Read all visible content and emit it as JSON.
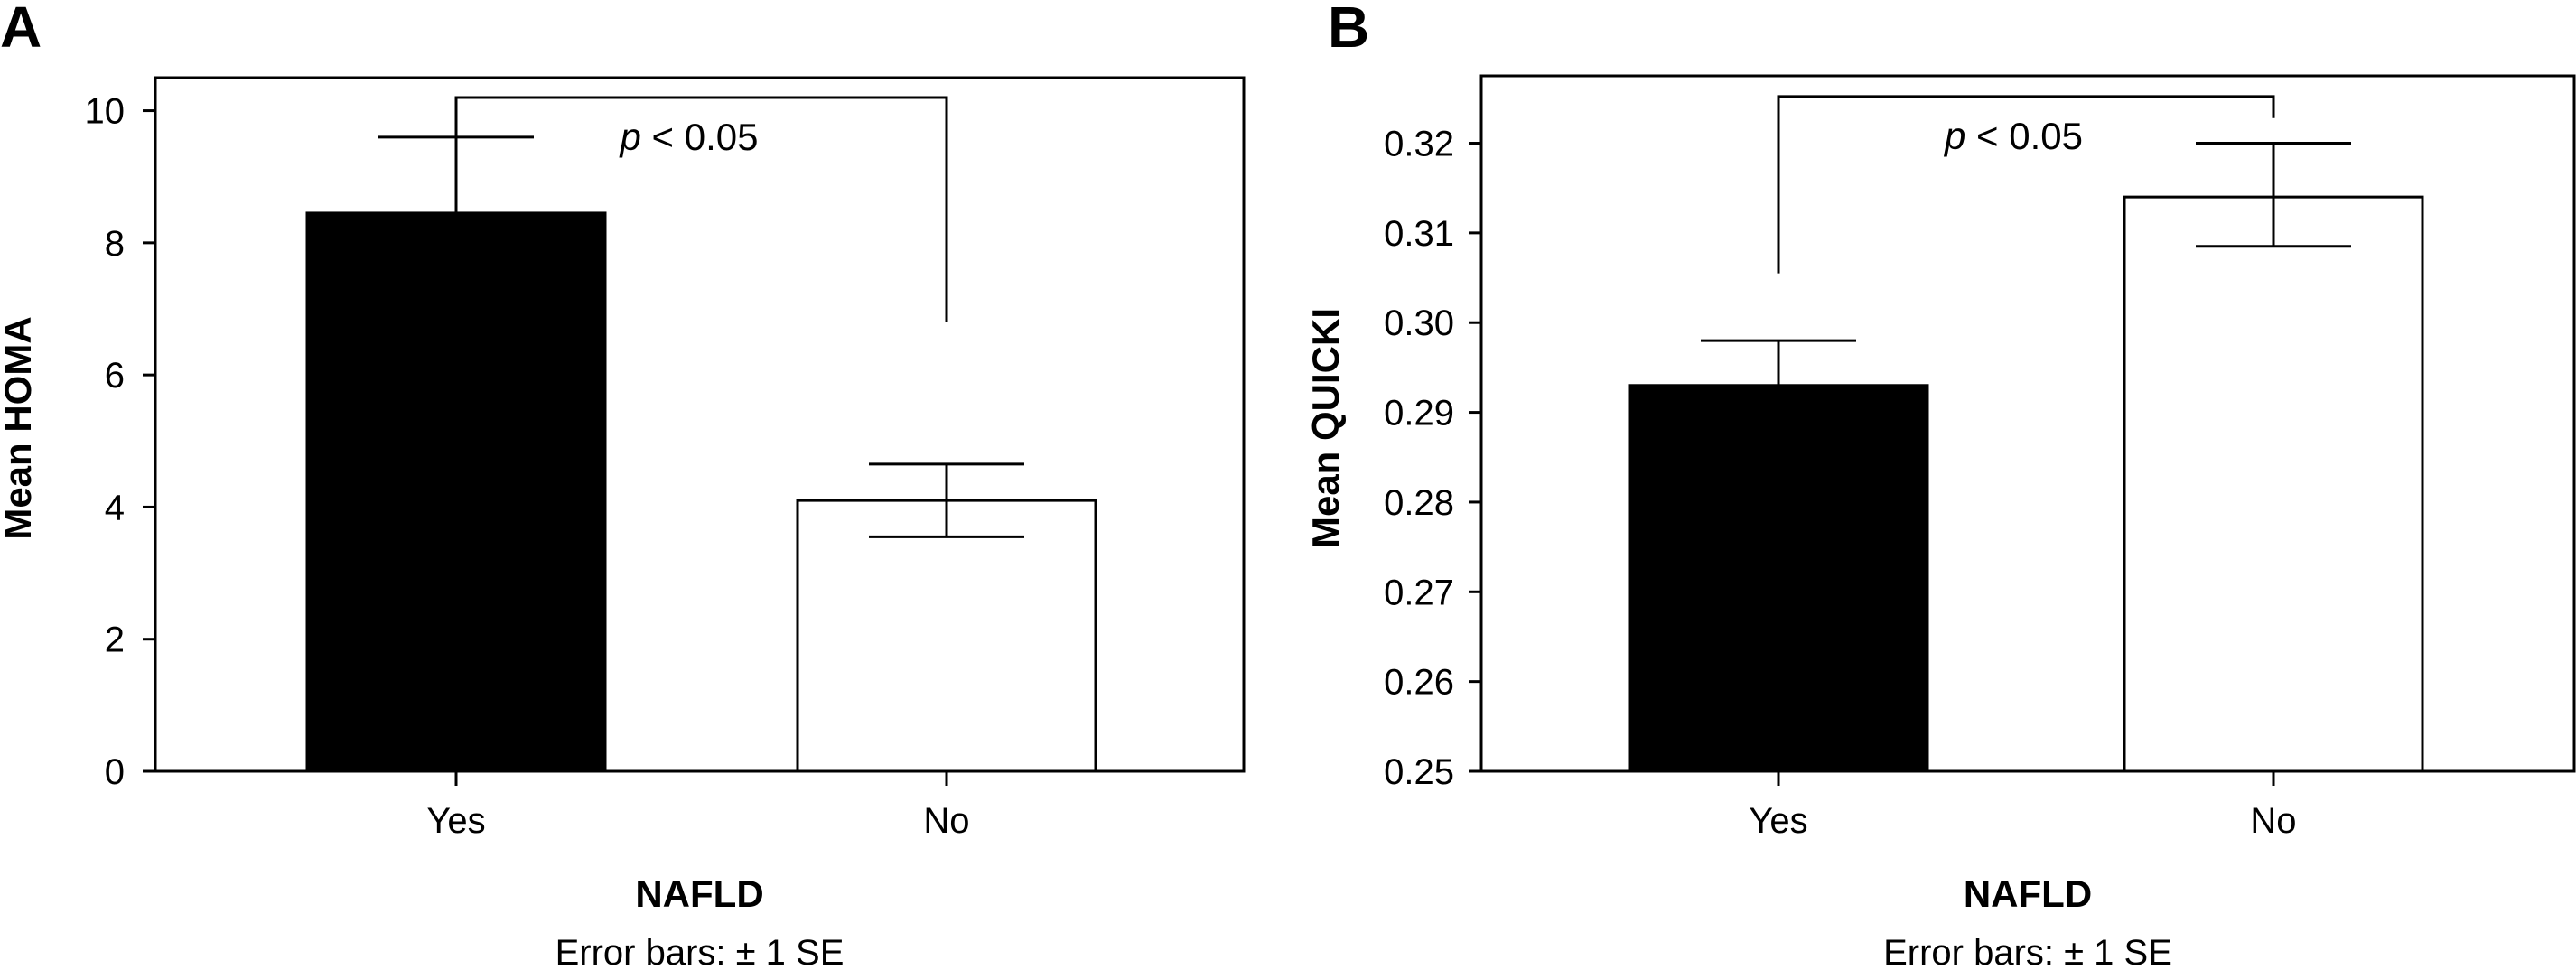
{
  "chart_data": [
    {
      "type": "bar",
      "panel_label": "A",
      "categories": [
        "Yes",
        "No"
      ],
      "values": [
        8.45,
        4.1
      ],
      "error_bars": {
        "upper": [
          9.6,
          4.65
        ],
        "lower": [
          7.3,
          3.55
        ]
      },
      "bar_colors": [
        "#000000",
        "#ffffff"
      ],
      "ylim": [
        0,
        10.5
      ],
      "yticks": [
        0,
        2,
        4,
        6,
        8,
        10
      ],
      "ytick_labels": [
        "0",
        "2",
        "4",
        "6",
        "8",
        "10"
      ],
      "ylabel": "Mean HOMA",
      "xlabel": "NAFLD",
      "note": "Error bars: ± 1 SE",
      "significance": {
        "p_symbol": "p",
        "p_rest": " < 0.05",
        "left_end": 9.6,
        "right_end": 6.8,
        "top": 10.2
      },
      "grid": false
    },
    {
      "type": "bar",
      "panel_label": "B",
      "categories": [
        "Yes",
        "No"
      ],
      "values": [
        0.293,
        0.314
      ],
      "error_bars": {
        "upper": [
          0.298,
          0.32
        ],
        "lower": [
          0.288,
          0.3085
        ]
      },
      "bar_colors": [
        "#000000",
        "#ffffff"
      ],
      "ylim": [
        0.25,
        0.3275
      ],
      "yticks": [
        0.25,
        0.26,
        0.27,
        0.28,
        0.29,
        0.3,
        0.31,
        0.32
      ],
      "ytick_labels": [
        "0.25",
        "0.26",
        "0.27",
        "0.28",
        "0.29",
        "0.30",
        "0.31",
        "0.32"
      ],
      "ylabel": "Mean QUICKI",
      "xlabel": "NAFLD",
      "note": "Error bars: ± 1 SE",
      "significance": {
        "p_symbol": "p",
        "p_rest": " < 0.05",
        "left_end": 0.3055,
        "right_end": 0.3228,
        "top": 0.3252
      },
      "grid": false
    }
  ]
}
